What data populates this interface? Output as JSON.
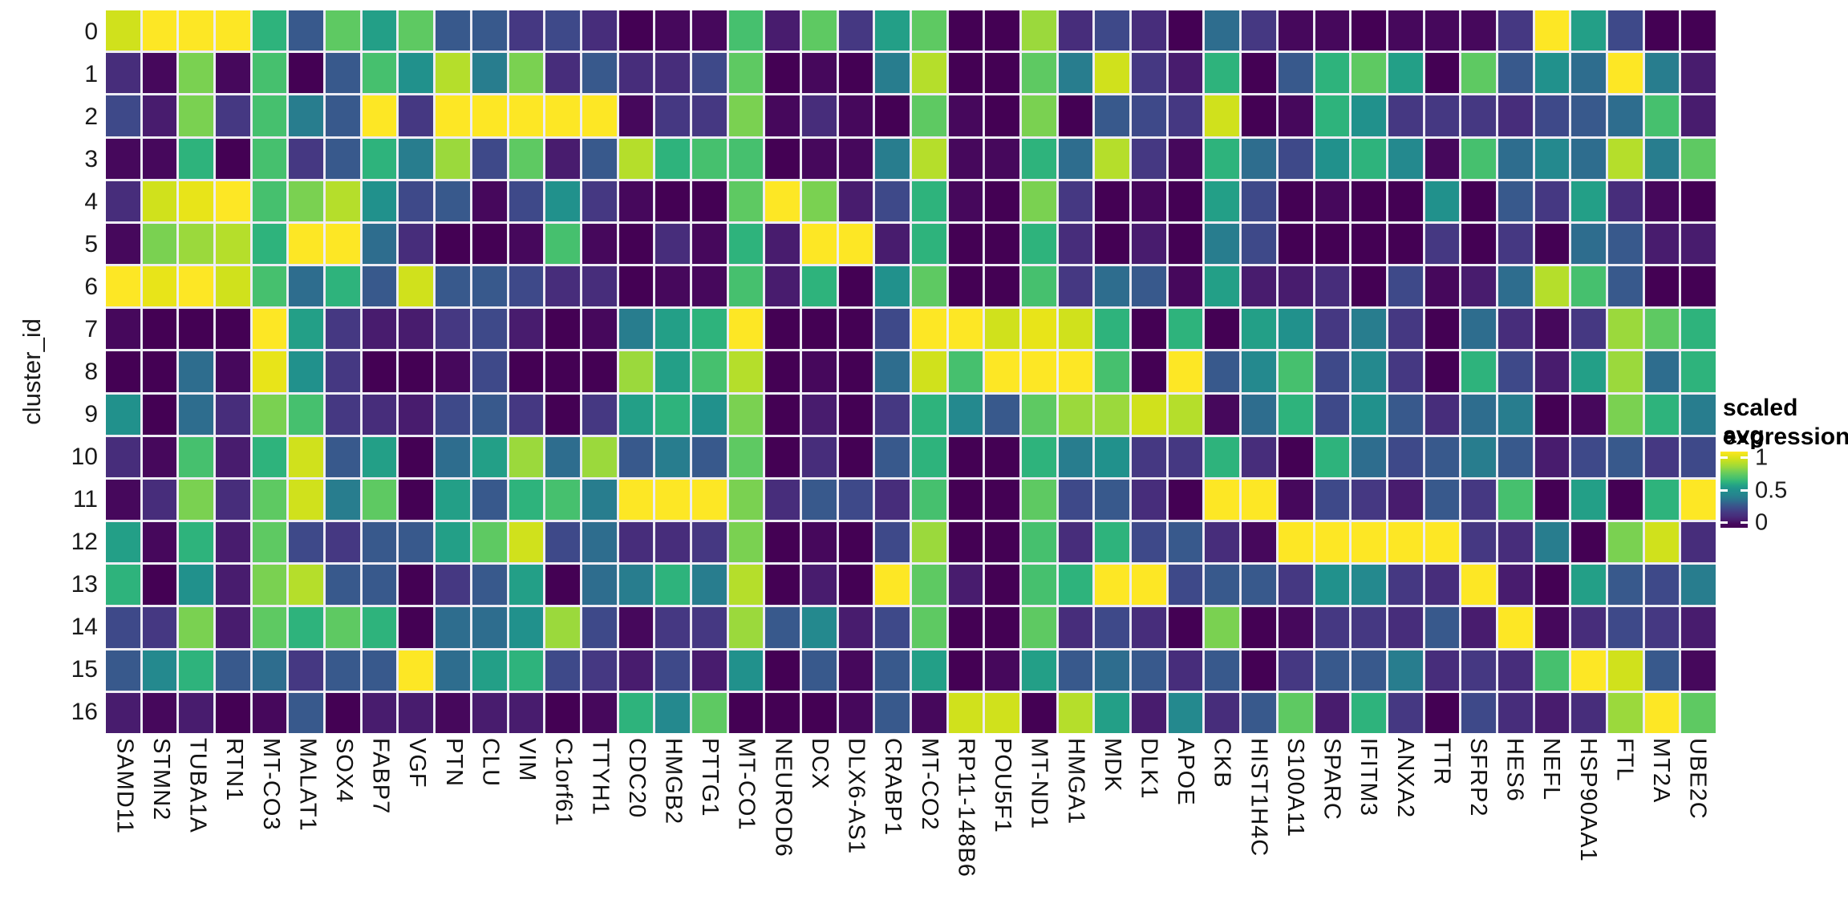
{
  "figure": {
    "ylabel": "cluster_id",
    "legend": {
      "title_line1": "scaled avg.",
      "title_line2": "expression",
      "ticks": [
        "1",
        "0.5",
        "0"
      ]
    }
  },
  "chart_data": {
    "type": "heatmap",
    "title": "",
    "xlabel": "",
    "ylabel": "cluster_id",
    "colormap": "viridis",
    "legend_title": "scaled avg. expression",
    "legend_ticks": [
      1,
      0.5,
      0
    ],
    "legend_position": "right",
    "value_range": [
      0,
      1
    ],
    "grid": false,
    "x": [
      "SAMD11",
      "STMN2",
      "TUBA1A",
      "RTN1",
      "MT-CO3",
      "MALAT1",
      "SOX4",
      "FABP7",
      "VGF",
      "PTN",
      "CLU",
      "VIM",
      "C1orf61",
      "TTYH1",
      "CDC20",
      "HMGB2",
      "PTTG1",
      "MT-CO1",
      "NEUROD6",
      "DCX",
      "DLX6-AS1",
      "CRABP1",
      "MT-CO2",
      "RP11-148B6",
      "POU5F1",
      "MT-ND1",
      "HMGA1",
      "MDK",
      "DLK1",
      "APOE",
      "CKB",
      "HIST1H4C",
      "S100A11",
      "SPARC",
      "IFITM3",
      "ANXA2",
      "TTR",
      "SFRP2",
      "HES6",
      "NEFL",
      "HSP90AA1",
      "FTL",
      "MT2A",
      "UBE2C"
    ],
    "y": [
      "0",
      "1",
      "2",
      "3",
      "4",
      "5",
      "6",
      "7",
      "8",
      "9",
      "10",
      "11",
      "12",
      "13",
      "14",
      "15",
      "16"
    ],
    "values": [
      [
        0.9,
        1.0,
        1.0,
        1.0,
        0.6,
        0.3,
        0.7,
        0.55,
        0.7,
        0.3,
        0.3,
        0.2,
        0.25,
        0.15,
        0,
        0.05,
        0.05,
        0.65,
        0.1,
        0.7,
        0.2,
        0.55,
        0.7,
        0,
        0,
        0.8,
        0.15,
        0.25,
        0.15,
        0,
        0.35,
        0.2,
        0.05,
        0.05,
        0,
        0.05,
        0.05,
        0.05,
        0.2,
        1.0,
        0.55,
        0.25,
        0,
        0
      ],
      [
        0.15,
        0.05,
        0.75,
        0.05,
        0.65,
        0,
        0.3,
        0.65,
        0.5,
        0.85,
        0.4,
        0.75,
        0.15,
        0.3,
        0.15,
        0.15,
        0.25,
        0.7,
        0,
        0.05,
        0,
        0.4,
        0.85,
        0,
        0,
        0.7,
        0.4,
        0.9,
        0.2,
        0.1,
        0.6,
        0,
        0.3,
        0.6,
        0.7,
        0.55,
        0,
        0.7,
        0.3,
        0.5,
        0.35,
        1.0,
        0.4,
        0.1
      ],
      [
        0.25,
        0.1,
        0.75,
        0.2,
        0.65,
        0.4,
        0.3,
        1.0,
        0.2,
        1.0,
        1.0,
        1.0,
        1.0,
        1.0,
        0.05,
        0.2,
        0.2,
        0.75,
        0.05,
        0.15,
        0.05,
        0,
        0.7,
        0.05,
        0,
        0.75,
        0,
        0.3,
        0.25,
        0.2,
        0.9,
        0,
        0.05,
        0.6,
        0.5,
        0.2,
        0.2,
        0.2,
        0.15,
        0.25,
        0.3,
        0.35,
        0.65,
        0.1
      ],
      [
        0.05,
        0.05,
        0.6,
        0,
        0.65,
        0.2,
        0.3,
        0.6,
        0.4,
        0.8,
        0.25,
        0.7,
        0.1,
        0.3,
        0.85,
        0.6,
        0.65,
        0.65,
        0,
        0.05,
        0.05,
        0.4,
        0.85,
        0.05,
        0.05,
        0.6,
        0.35,
        0.85,
        0.2,
        0.05,
        0.6,
        0.35,
        0.25,
        0.5,
        0.6,
        0.45,
        0.05,
        0.65,
        0.35,
        0.45,
        0.35,
        0.85,
        0.4,
        0.7
      ],
      [
        0.15,
        0.9,
        0.95,
        1.0,
        0.65,
        0.75,
        0.85,
        0.5,
        0.25,
        0.3,
        0.05,
        0.25,
        0.5,
        0.2,
        0.05,
        0,
        0,
        0.7,
        1.0,
        0.75,
        0.1,
        0.25,
        0.6,
        0.05,
        0,
        0.75,
        0.2,
        0,
        0.05,
        0,
        0.55,
        0.25,
        0,
        0.05,
        0,
        0,
        0.5,
        0,
        0.3,
        0.2,
        0.55,
        0.15,
        0.05,
        0
      ],
      [
        0.05,
        0.75,
        0.8,
        0.85,
        0.6,
        1.0,
        1.0,
        0.35,
        0.15,
        0,
        0,
        0.05,
        0.65,
        0.05,
        0,
        0.15,
        0.05,
        0.6,
        0.1,
        1.0,
        1.0,
        0.1,
        0.6,
        0,
        0,
        0.6,
        0.15,
        0,
        0.1,
        0,
        0.4,
        0.25,
        0,
        0,
        0,
        0,
        0.2,
        0,
        0.2,
        0,
        0.35,
        0.3,
        0.1,
        0.1
      ],
      [
        1.0,
        0.95,
        1.0,
        0.9,
        0.65,
        0.35,
        0.6,
        0.3,
        0.9,
        0.3,
        0.3,
        0.25,
        0.15,
        0.15,
        0,
        0.05,
        0.05,
        0.65,
        0.1,
        0.6,
        0,
        0.5,
        0.7,
        0,
        0,
        0.65,
        0.2,
        0.35,
        0.3,
        0.05,
        0.55,
        0.1,
        0.1,
        0.15,
        0,
        0.25,
        0.05,
        0.1,
        0.35,
        0.85,
        0.65,
        0.3,
        0,
        0
      ],
      [
        0.05,
        0,
        0,
        0,
        1.0,
        0.55,
        0.2,
        0.1,
        0.1,
        0.2,
        0.25,
        0.1,
        0,
        0.05,
        0.4,
        0.55,
        0.6,
        1.0,
        0,
        0,
        0,
        0.25,
        1.0,
        1.0,
        0.9,
        0.95,
        0.9,
        0.6,
        0,
        0.6,
        0,
        0.55,
        0.5,
        0.2,
        0.4,
        0.2,
        0,
        0.35,
        0.15,
        0.05,
        0.2,
        0.8,
        0.7,
        0.6
      ],
      [
        0,
        0,
        0.35,
        0.05,
        0.95,
        0.5,
        0.2,
        0,
        0,
        0.05,
        0.25,
        0,
        0,
        0,
        0.8,
        0.55,
        0.65,
        0.85,
        0,
        0.05,
        0,
        0.35,
        0.9,
        0.65,
        1.0,
        1.0,
        1.0,
        0.65,
        0,
        1.0,
        0.3,
        0.45,
        0.65,
        0.25,
        0.45,
        0.2,
        0,
        0.6,
        0.25,
        0.1,
        0.55,
        0.8,
        0.35,
        0.6
      ],
      [
        0.5,
        0,
        0.35,
        0.15,
        0.75,
        0.65,
        0.2,
        0.15,
        0.1,
        0.25,
        0.3,
        0.2,
        0,
        0.2,
        0.55,
        0.6,
        0.5,
        0.75,
        0,
        0.1,
        0,
        0.2,
        0.6,
        0.45,
        0.3,
        0.7,
        0.8,
        0.8,
        0.9,
        0.85,
        0.05,
        0.35,
        0.6,
        0.25,
        0.5,
        0.3,
        0.15,
        0.35,
        0.4,
        0,
        0.05,
        0.75,
        0.6,
        0.4
      ],
      [
        0.15,
        0.05,
        0.65,
        0.1,
        0.6,
        0.9,
        0.3,
        0.55,
        0,
        0.35,
        0.55,
        0.8,
        0.35,
        0.8,
        0.3,
        0.4,
        0.3,
        0.7,
        0,
        0.15,
        0,
        0.3,
        0.6,
        0,
        0,
        0.6,
        0.4,
        0.5,
        0.2,
        0.2,
        0.6,
        0.15,
        0,
        0.6,
        0.35,
        0.25,
        0.3,
        0.4,
        0.3,
        0.1,
        0.25,
        0.3,
        0.2,
        0.25
      ],
      [
        0.05,
        0.15,
        0.75,
        0.15,
        0.7,
        0.9,
        0.4,
        0.7,
        0,
        0.55,
        0.3,
        0.6,
        0.65,
        0.4,
        1.0,
        1.0,
        1.0,
        0.75,
        0.15,
        0.3,
        0.25,
        0.15,
        0.65,
        0,
        0,
        0.7,
        0.25,
        0.3,
        0.15,
        0,
        1.0,
        1.0,
        0.05,
        0.25,
        0.2,
        0.1,
        0.3,
        0.2,
        0.65,
        0,
        0.55,
        0,
        0.6,
        1.0
      ],
      [
        0.55,
        0.05,
        0.6,
        0.1,
        0.7,
        0.25,
        0.2,
        0.3,
        0.3,
        0.55,
        0.7,
        0.9,
        0.25,
        0.35,
        0.15,
        0.15,
        0.2,
        0.75,
        0,
        0.05,
        0,
        0.25,
        0.8,
        0,
        0,
        0.65,
        0.15,
        0.6,
        0.25,
        0.3,
        0.15,
        0.05,
        1.0,
        1.0,
        1.0,
        1.0,
        1.0,
        0.2,
        0.15,
        0.4,
        0,
        0.75,
        0.9,
        0.15
      ],
      [
        0.6,
        0,
        0.5,
        0.1,
        0.75,
        0.85,
        0.3,
        0.3,
        0,
        0.2,
        0.3,
        0.55,
        0,
        0.35,
        0.4,
        0.6,
        0.4,
        0.85,
        0,
        0.1,
        0,
        1.0,
        0.7,
        0.1,
        0,
        0.65,
        0.6,
        1.0,
        1.0,
        0.25,
        0.3,
        0.3,
        0.2,
        0.5,
        0.45,
        0.2,
        0.15,
        1.0,
        0.1,
        0,
        0.55,
        0.3,
        0.25,
        0.4
      ],
      [
        0.25,
        0.2,
        0.75,
        0.1,
        0.7,
        0.6,
        0.7,
        0.6,
        0,
        0.35,
        0.35,
        0.5,
        0.8,
        0.25,
        0.05,
        0.2,
        0.2,
        0.8,
        0.3,
        0.45,
        0.1,
        0.25,
        0.7,
        0,
        0,
        0.7,
        0.15,
        0.25,
        0.15,
        0,
        0.75,
        0,
        0.05,
        0.2,
        0.2,
        0.15,
        0.3,
        0.1,
        1.0,
        0.05,
        0.15,
        0.25,
        0.2,
        0.1
      ],
      [
        0.3,
        0.45,
        0.6,
        0.3,
        0.35,
        0.2,
        0.3,
        0.3,
        1.0,
        0.35,
        0.55,
        0.6,
        0.25,
        0.2,
        0.1,
        0.25,
        0.1,
        0.5,
        0,
        0.3,
        0.05,
        0.3,
        0.55,
        0,
        0.05,
        0.55,
        0.3,
        0.35,
        0.3,
        0.15,
        0.3,
        0,
        0.2,
        0.3,
        0.3,
        0.4,
        0.15,
        0.2,
        0.15,
        0.65,
        1.0,
        0.9,
        0.3,
        0.05
      ],
      [
        0.1,
        0.05,
        0.1,
        0,
        0.05,
        0.3,
        0,
        0.1,
        0.1,
        0.05,
        0.1,
        0.1,
        0,
        0.05,
        0.6,
        0.45,
        0.7,
        0,
        0,
        0,
        0.05,
        0.3,
        0.05,
        0.9,
        0.9,
        0,
        0.85,
        0.55,
        0.1,
        0.45,
        0.15,
        0.3,
        0.7,
        0.1,
        0.6,
        0.2,
        0,
        0.25,
        0.15,
        0.1,
        0.15,
        0.8,
        1.0,
        0.7
      ]
    ]
  }
}
